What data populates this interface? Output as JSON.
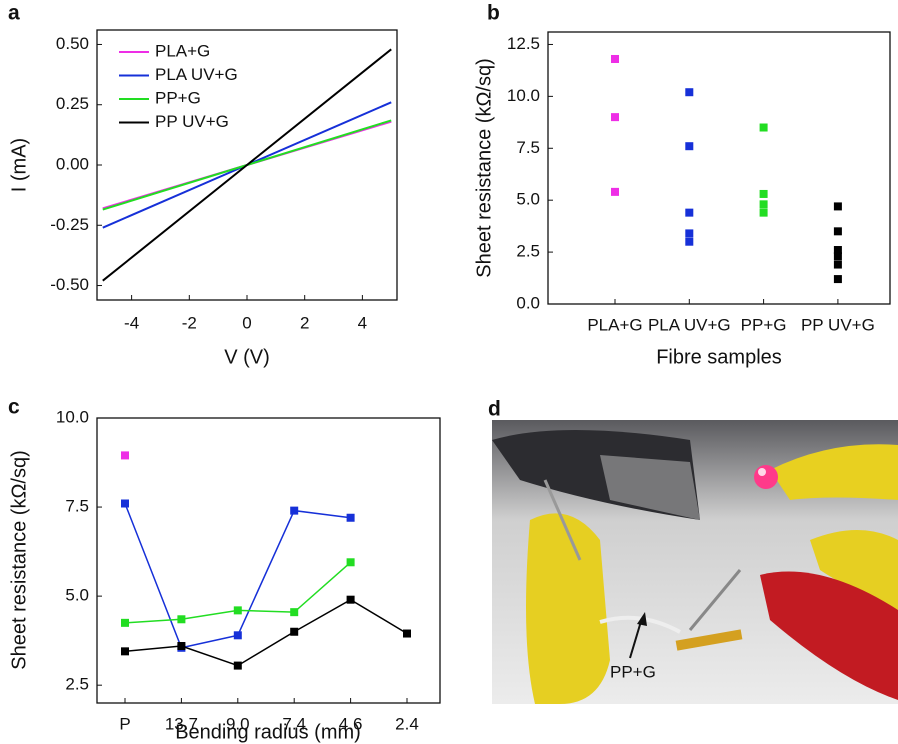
{
  "chart_data": [
    {
      "panel": "a",
      "type": "line",
      "x_label": "V (V)",
      "y_label": "I (mA)",
      "x": [
        -5,
        0,
        5
      ],
      "xlim": [
        -5.2,
        5.2
      ],
      "xticks": [
        -4,
        -2,
        0,
        2,
        4
      ],
      "ylim": [
        -0.56,
        0.56
      ],
      "yticks": [
        {
          "value": -0.5,
          "label": "-0.50"
        },
        {
          "value": -0.25,
          "label": "-0.25"
        },
        {
          "value": 0,
          "label": "0.00"
        },
        {
          "value": 0.25,
          "label": "0.25"
        },
        {
          "value": 0.5,
          "label": "0.50"
        }
      ],
      "legend": "upper left",
      "series": [
        {
          "name": "PLA+G",
          "color": "#ee2ee6",
          "values": [
            -0.18,
            0,
            0.18
          ]
        },
        {
          "name": "PLA UV+G",
          "color": "#1630d8",
          "values": [
            -0.26,
            0,
            0.26
          ]
        },
        {
          "name": "PP+G",
          "color": "#22dd22",
          "values": [
            -0.185,
            0,
            0.185
          ]
        },
        {
          "name": "PP UV+G",
          "color": "#000000",
          "values": [
            -0.48,
            0,
            0.48
          ]
        }
      ]
    },
    {
      "panel": "b",
      "type": "scatter",
      "x_label": "Fibre samples",
      "y_label": "Sheet resistance (kΩ/sq)",
      "categories": [
        "PLA+G",
        "PLA UV+G",
        "PP+G",
        "PP UV+G"
      ],
      "colors": [
        "#ee2ee6",
        "#1630d8",
        "#22dd22",
        "#000000"
      ],
      "values": [
        [
          11.8,
          9.0,
          5.4
        ],
        [
          10.2,
          7.6,
          4.4,
          3.4,
          3.0
        ],
        [
          8.5,
          5.3,
          4.8,
          4.4
        ],
        [
          4.7,
          3.5,
          2.6,
          2.3,
          1.9,
          1.2
        ]
      ],
      "ylim": [
        0,
        13.1
      ],
      "yticks": [
        {
          "value": 0,
          "label": "0.0"
        },
        {
          "value": 2.5,
          "label": "2.5"
        },
        {
          "value": 5,
          "label": "5.0"
        },
        {
          "value": 7.5,
          "label": "7.5"
        },
        {
          "value": 10,
          "label": "10.0"
        },
        {
          "value": 12.5,
          "label": "12.5"
        }
      ]
    },
    {
      "panel": "c",
      "type": "line",
      "markers": true,
      "x_label": "Bending radius (mm)",
      "y_label": "Sheet resistance (kΩ/sq)",
      "categories": [
        "P",
        "13.7",
        "9.0",
        "7.4",
        "4.6",
        "2.4"
      ],
      "ylim": [
        2.0,
        10.0
      ],
      "yticks": [
        {
          "value": 2.5,
          "label": "2.5"
        },
        {
          "value": 5,
          "label": "5.0"
        },
        {
          "value": 7.5,
          "label": "7.5"
        },
        {
          "value": 10,
          "label": "10.0"
        }
      ],
      "series": [
        {
          "color": "#ee2ee6",
          "values": [
            8.95,
            null,
            null,
            null,
            null,
            null
          ]
        },
        {
          "color": "#1630d8",
          "values": [
            7.6,
            3.55,
            3.9,
            7.4,
            7.2,
            null
          ]
        },
        {
          "color": "#22dd22",
          "values": [
            4.25,
            4.35,
            4.6,
            4.55,
            5.95,
            null
          ]
        },
        {
          "color": "#000000",
          "values": [
            3.45,
            3.6,
            3.05,
            4.0,
            4.9,
            3.95
          ]
        }
      ]
    }
  ],
  "photo": {
    "panel": "d",
    "annotation": "PP+G"
  }
}
